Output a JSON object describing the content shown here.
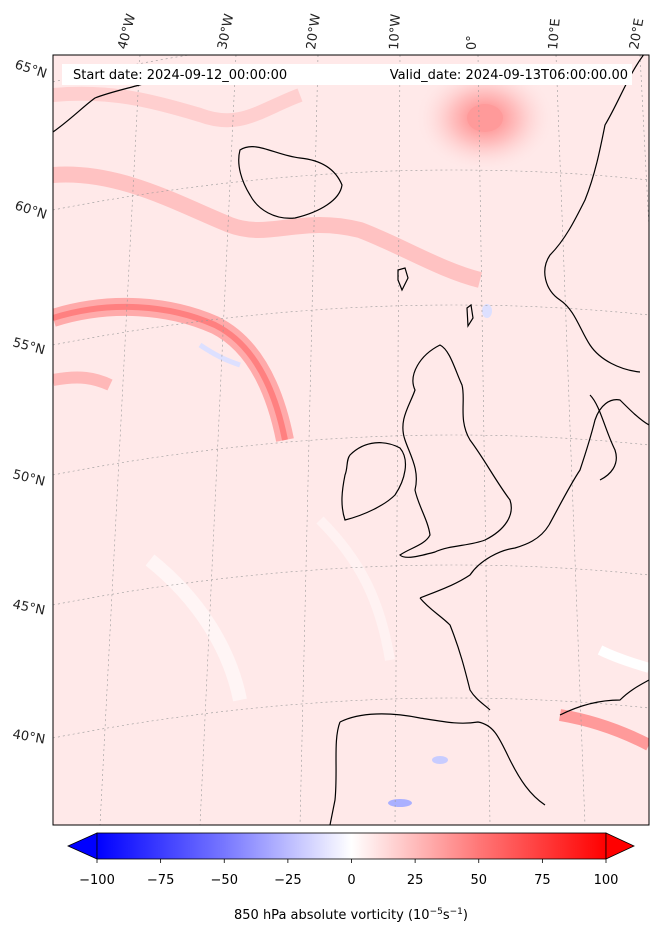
{
  "header": {
    "start_date": "Start date: 2024-09-12_00:00:00",
    "valid_date": "Valid_date: 2024-09-13T06:00:00.00"
  },
  "longitude_labels": [
    "40°W",
    "30°W",
    "20°W",
    "10°W",
    "0°",
    "10°E",
    "20°E"
  ],
  "latitude_labels": [
    "65°N",
    "60°N",
    "55°N",
    "50°N",
    "45°N",
    "40°N"
  ],
  "colorbar": {
    "ticks": [
      "−100",
      "−75",
      "−50",
      "−25",
      "0",
      "25",
      "50",
      "75",
      "100"
    ],
    "min": -100,
    "max": 100,
    "label": "850 hPa absolute vorticity (10",
    "label_exp1": "−5",
    "label_mid": "s",
    "label_exp2": "−1",
    "label_end": ")",
    "colors": {
      "negative": "#0000ff",
      "zero": "#ffffff",
      "positive": "#ff0000"
    }
  },
  "colors": {
    "background_field": "#ffe9e9",
    "coast": "#000000",
    "grid": "#999999"
  }
}
